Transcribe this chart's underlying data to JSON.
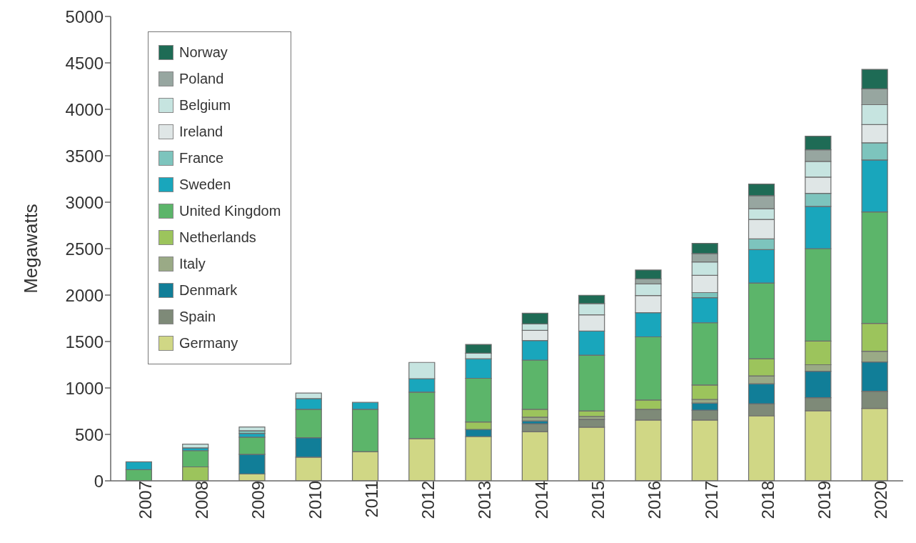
{
  "chart_data": {
    "type": "bar",
    "stacked": true,
    "ylabel": "Megawatts",
    "categories": [
      "2007",
      "2008",
      "2009",
      "2010",
      "2011",
      "2012",
      "2013",
      "2014",
      "2015",
      "2016",
      "2017",
      "2018",
      "2019",
      "2020"
    ],
    "ylim": [
      0,
      5000
    ],
    "yticks": [
      0,
      500,
      1000,
      1500,
      2000,
      2500,
      3000,
      3500,
      4000,
      4500,
      5000
    ],
    "grid": false,
    "legend": "top left",
    "series": [
      {
        "name": "Germany",
        "color": "#d0d785",
        "values": [
          0,
          0,
          75,
          255,
          315,
          455,
          477,
          530,
          578,
          655,
          655,
          700,
          755,
          780
        ]
      },
      {
        "name": "Spain",
        "color": "#7e8a78",
        "values": [
          0,
          0,
          0,
          0,
          0,
          0,
          0,
          85,
          85,
          115,
          105,
          130,
          140,
          185
        ]
      },
      {
        "name": "Denmark",
        "color": "#117e98",
        "values": [
          0,
          0,
          210,
          210,
          0,
          0,
          77,
          30,
          0,
          0,
          77,
          215,
          285,
          315
        ]
      },
      {
        "name": "Italy",
        "color": "#9aaa86",
        "values": [
          0,
          0,
          0,
          0,
          0,
          0,
          0,
          40,
          30,
          0,
          40,
          85,
          70,
          115
        ]
      },
      {
        "name": "Netherlands",
        "color": "#9cc45c",
        "values": [
          0,
          150,
          0,
          0,
          0,
          0,
          80,
          85,
          60,
          100,
          155,
          185,
          255,
          300
        ]
      },
      {
        "name": "United Kingdom",
        "color": "#5cb56a",
        "values": [
          120,
          175,
          185,
          305,
          455,
          500,
          470,
          530,
          600,
          680,
          670,
          815,
          995,
          1200
        ]
      },
      {
        "name": "Sweden",
        "color": "#19a6bc",
        "values": [
          85,
          30,
          40,
          115,
          75,
          145,
          210,
          210,
          260,
          260,
          270,
          360,
          455,
          560
        ]
      },
      {
        "name": "France",
        "color": "#7dc4bd",
        "values": [
          0,
          0,
          30,
          0,
          0,
          0,
          0,
          0,
          0,
          0,
          55,
          115,
          140,
          185
        ]
      },
      {
        "name": "Ireland",
        "color": "#dfe6e6",
        "values": [
          0,
          0,
          0,
          0,
          0,
          0,
          0,
          110,
          175,
          185,
          185,
          210,
          175,
          195
        ]
      },
      {
        "name": "Belgium",
        "color": "#c6e4e0",
        "values": [
          0,
          40,
          40,
          60,
          0,
          175,
          60,
          70,
          120,
          125,
          145,
          115,
          170,
          215
        ]
      },
      {
        "name": "Poland",
        "color": "#97a6a0",
        "values": [
          0,
          0,
          0,
          0,
          0,
          0,
          0,
          0,
          0,
          55,
          90,
          140,
          125,
          170
        ]
      },
      {
        "name": "Norway",
        "color": "#1e6b55",
        "values": [
          0,
          0,
          0,
          0,
          0,
          0,
          95,
          115,
          90,
          95,
          110,
          125,
          145,
          210
        ]
      }
    ]
  }
}
